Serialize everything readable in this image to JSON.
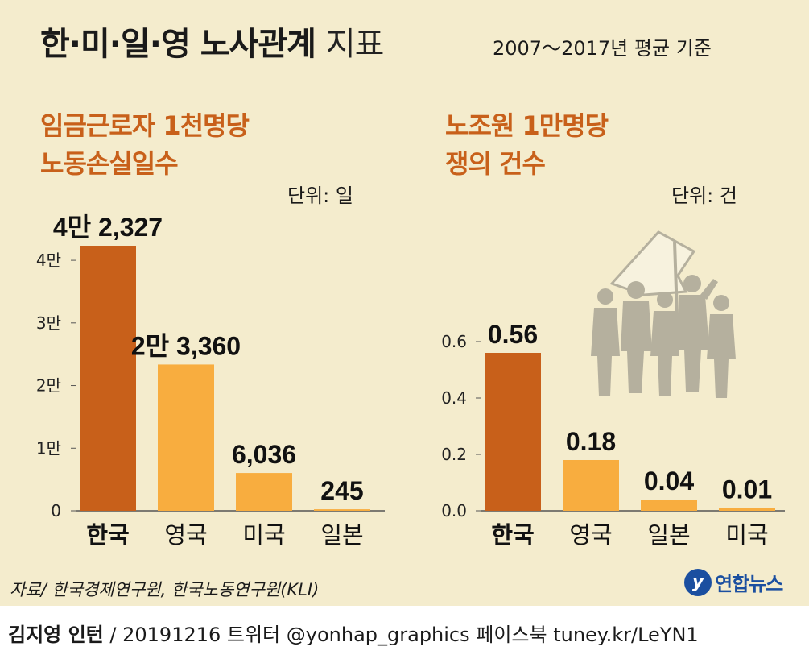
{
  "header": {
    "title_main": "한·미·일·영 노사관계",
    "title_light": "지표",
    "period": "2007～2017년 평균 기준"
  },
  "colors": {
    "highlight": "#c8601a",
    "bar": "#f8ad3f",
    "title_accent": "#c8601a"
  },
  "chart_data": [
    {
      "type": "bar",
      "title_lines": [
        "임금근로자 1천명당",
        "노동손실일수"
      ],
      "unit_label": "단위: 일",
      "categories": [
        "한국",
        "영국",
        "미국",
        "일본"
      ],
      "values": [
        42327,
        23360,
        6036,
        245
      ],
      "value_labels": [
        "4만 2,327",
        "2만 3,360",
        "6,036",
        "245"
      ],
      "yticks": [
        0,
        10000,
        20000,
        30000,
        40000
      ],
      "ytick_labels": [
        "0",
        "1만",
        "2만",
        "3만",
        "4만"
      ],
      "ylim": [
        0,
        42327
      ],
      "highlight_index": 0,
      "grid": false
    },
    {
      "type": "bar",
      "title_lines": [
        "노조원 1만명당",
        "쟁의 건수"
      ],
      "unit_label": "단위: 건",
      "categories": [
        "한국",
        "영국",
        "일본",
        "미국"
      ],
      "values": [
        0.56,
        0.18,
        0.04,
        0.01
      ],
      "value_labels": [
        "0.56",
        "0.18",
        "0.04",
        "0.01"
      ],
      "yticks": [
        0,
        0.2,
        0.4,
        0.6
      ],
      "ytick_labels": [
        "0.0",
        "0.2",
        "0.4",
        "0.6"
      ],
      "ylim": [
        0,
        0.56
      ],
      "highlight_index": 0,
      "grid": false
    }
  ],
  "footer": {
    "source": "자료/ 한국경제연구원, 한국노동연구원(KLI)",
    "author": "김지영 인턴",
    "credit_rest": " / 20191216 트위터 @yonhap_graphics  페이스북 tuney.kr/LeYN1",
    "logo_mark": "y",
    "logo_name": "연합뉴스"
  }
}
